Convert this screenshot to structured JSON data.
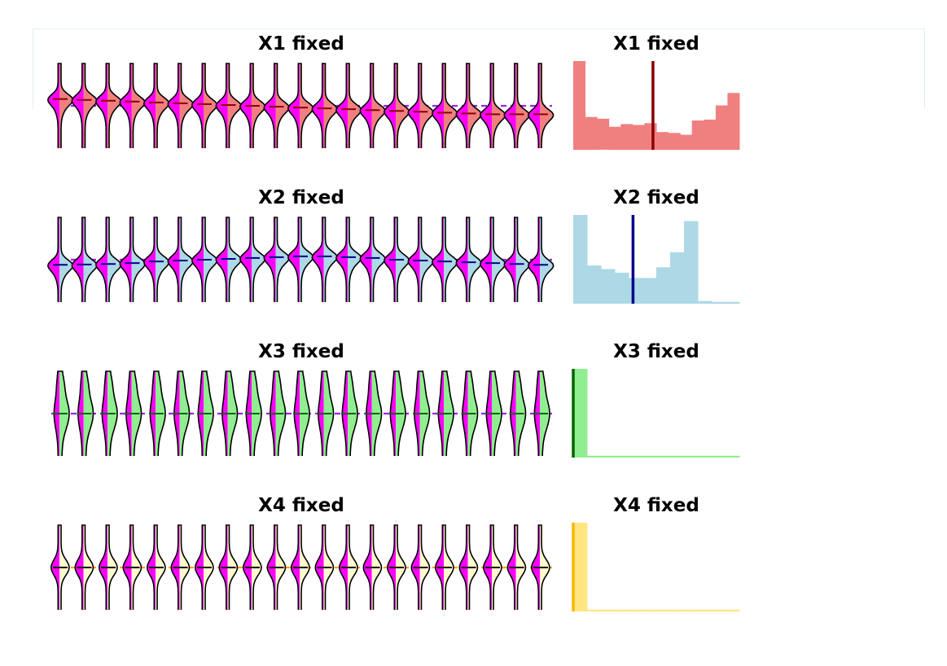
{
  "chart_data": [
    {
      "type": "violin",
      "title": "X1 fixed",
      "n_violins": 21,
      "colors": {
        "fill_primary": "#f08080",
        "fill_secondary": "#ff00ff",
        "line": "#8b0000",
        "dashed": "#a020f0"
      },
      "shift": [
        -0.4,
        -0.35,
        -0.3,
        -0.25,
        -0.2,
        -0.15,
        -0.1,
        -0.05,
        0.0,
        0.05,
        0.1,
        0.15,
        0.2,
        0.25,
        0.3,
        0.35,
        0.4,
        0.45,
        0.5,
        0.5,
        0.5
      ]
    },
    {
      "type": "bar",
      "title": "X1 fixed",
      "fill": "#f08080",
      "marker_color": "#8b0000",
      "values": [
        1.0,
        0.37,
        0.35,
        0.26,
        0.29,
        0.28,
        0.3,
        0.2,
        0.19,
        0.17,
        0.33,
        0.34,
        0.5,
        0.64
      ],
      "marker": 0.48
    },
    {
      "type": "violin",
      "title": "X2 fixed",
      "n_violins": 21,
      "colors": {
        "fill_primary": "#add8e6",
        "fill_secondary": "#ff00ff",
        "line": "#00008b",
        "dashed": "#a020f0"
      },
      "shift": [
        0.3,
        0.28,
        0.25,
        0.2,
        0.1,
        0.05,
        0.0,
        -0.05,
        -0.1,
        -0.15,
        -0.2,
        -0.2,
        -0.15,
        -0.1,
        0.0,
        0.05,
        0.1,
        0.15,
        0.2,
        0.25,
        0.3
      ]
    },
    {
      "type": "bar",
      "title": "X2 fixed",
      "fill": "#add8e6",
      "marker_color": "#00008b",
      "values": [
        1.0,
        0.43,
        0.39,
        0.35,
        0.29,
        0.29,
        0.41,
        0.58,
        0.93,
        0.03,
        0.02,
        0.02
      ],
      "marker": 0.36
    },
    {
      "type": "violin",
      "title": "X3 fixed",
      "n_violins": 21,
      "colors": {
        "fill_primary": "#90ee90",
        "fill_secondary": "#ff00ff",
        "line": "#006400",
        "dashed": "#a020f0"
      },
      "shift": [
        0,
        0,
        0,
        0,
        0,
        0,
        0,
        0,
        0,
        0,
        0,
        0,
        0,
        0,
        0,
        0,
        0,
        0,
        0,
        0,
        0
      ]
    },
    {
      "type": "bar",
      "title": "X3 fixed",
      "fill": "#90ee90",
      "marker_color": "#006400",
      "values": [
        1.0,
        0.02,
        0.02,
        0.02,
        0.02,
        0.02,
        0.02,
        0.02,
        0.02,
        0.02,
        0.02,
        0.02
      ],
      "marker": 0.0
    },
    {
      "type": "violin",
      "title": "X4 fixed",
      "n_violins": 21,
      "colors": {
        "fill_primary": "#fffacd",
        "fill_secondary": "#ff00ff",
        "line": "#000000",
        "dashed": "#ffa500"
      },
      "shift": [
        0,
        0,
        0,
        0,
        0,
        0,
        0,
        0,
        0,
        0,
        0,
        0,
        0,
        0,
        0,
        0,
        0,
        0,
        0,
        0,
        0
      ]
    },
    {
      "type": "bar",
      "title": "X4 fixed",
      "fill": "#ffe680",
      "marker_color": "#f5b800",
      "values": [
        1.0,
        0.02,
        0.02,
        0.02,
        0.02,
        0.02,
        0.02,
        0.02,
        0.02,
        0.02,
        0.02,
        0.02
      ],
      "marker": 0.0
    }
  ]
}
